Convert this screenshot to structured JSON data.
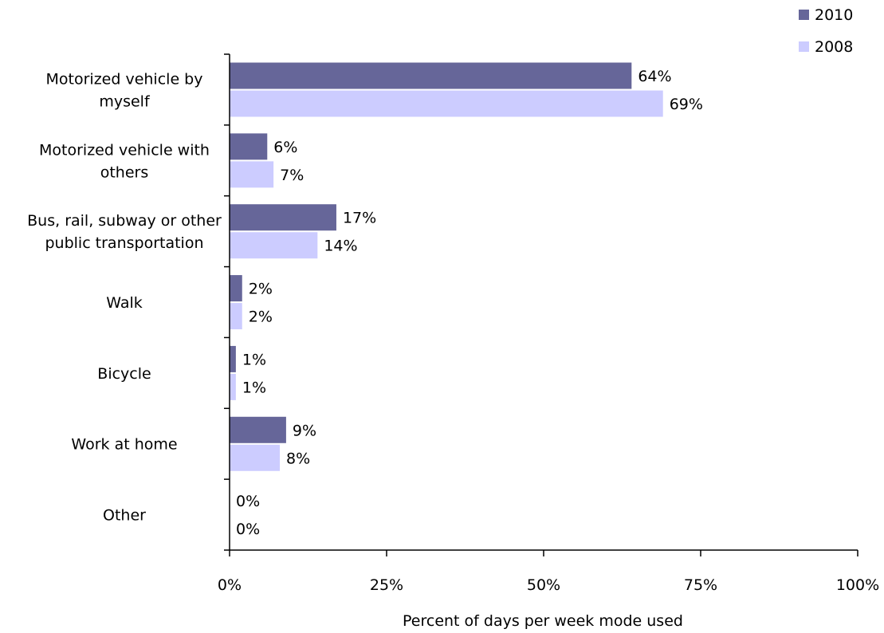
{
  "chart_data": {
    "type": "bar",
    "orientation": "horizontal",
    "categories": [
      [
        "Motorized vehicle by",
        "myself"
      ],
      [
        "Motorized vehicle with",
        "others"
      ],
      [
        "Bus, rail, subway or other",
        "public transportation"
      ],
      [
        "Walk"
      ],
      [
        "Bicycle"
      ],
      [
        "Work at home"
      ],
      [
        "Other"
      ]
    ],
    "series": [
      {
        "name": "2010",
        "color": "#666699",
        "values": [
          64,
          6,
          17,
          2,
          1,
          9,
          0
        ]
      },
      {
        "name": "2008",
        "color": "#ccccff",
        "values": [
          69,
          7,
          14,
          2,
          1,
          8,
          0
        ]
      }
    ],
    "value_labels": [
      [
        "64%",
        "6%",
        "17%",
        "2%",
        "1%",
        "9%",
        "0%"
      ],
      [
        "69%",
        "7%",
        "14%",
        "2%",
        "1%",
        "8%",
        "0%"
      ]
    ],
    "xlim": [
      0,
      100
    ],
    "xticks": [
      0,
      25,
      50,
      75,
      100
    ],
    "xtick_labels": [
      "0%",
      "25%",
      "50%",
      "75%",
      "100%"
    ],
    "xlabel": "Percent of days per week mode used",
    "ylabel": "",
    "title": "",
    "grid": false,
    "legend_position": "top-right"
  }
}
